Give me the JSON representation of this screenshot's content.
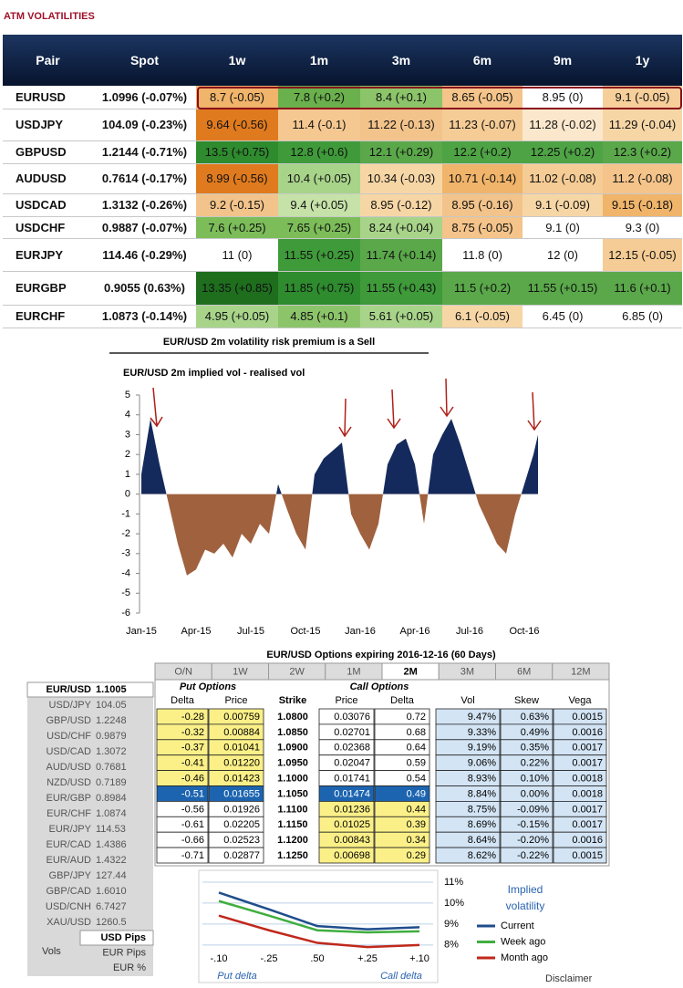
{
  "header": {
    "title": "ATM VOLATILITIES"
  },
  "vol_table": {
    "columns": [
      "Pair",
      "Spot",
      "1w",
      "1m",
      "3m",
      "6m",
      "9m",
      "1y"
    ],
    "rows": [
      [
        "EURUSD",
        "1.0996 (-0.07%)",
        "8.7 (-0.05)",
        "7.8 (+0.2)",
        "8.4 (+0.1)",
        "8.65 (-0.05)",
        "8.95 (0)",
        "9.1 (-0.05)"
      ],
      [
        "USDJPY",
        "104.09 (-0.23%)",
        "9.64 (-0.56)",
        "11.4 (-0.1)",
        "11.22 (-0.13)",
        "11.23 (-0.07)",
        "11.28 (-0.02)",
        "11.29 (-0.04)"
      ],
      [
        "GBPUSD",
        "1.2144 (-0.71%)",
        "13.5 (+0.75)",
        "12.8 (+0.6)",
        "12.1 (+0.29)",
        "12.2 (+0.2)",
        "12.25 (+0.2)",
        "12.3 (+0.2)"
      ],
      [
        "AUDUSD",
        "0.7614 (-0.17%)",
        "8.99 (-0.56)",
        "10.4 (+0.05)",
        "10.34 (-0.03)",
        "10.71 (-0.14)",
        "11.02 (-0.08)",
        "11.2 (-0.08)"
      ],
      [
        "USDCAD",
        "1.3132 (-0.26%)",
        "9.2 (-0.15)",
        "9.4 (+0.05)",
        "8.95 (-0.12)",
        "8.95 (-0.16)",
        "9.1 (-0.09)",
        "9.15 (-0.18)"
      ],
      [
        "USDCHF",
        "0.9887 (-0.07%)",
        "7.6 (+0.25)",
        "7.65 (+0.25)",
        "8.24 (+0.04)",
        "8.75 (-0.05)",
        "9.1 (0)",
        "9.3 (0)"
      ],
      [
        "EURJPY",
        "114.46 (-0.29%)",
        "11 (0)",
        "11.55 (+0.25)",
        "11.74 (+0.14)",
        "11.8 (0)",
        "12 (0)",
        "12.15 (-0.05)"
      ],
      [
        "EURGBP",
        "0.9055 (0.63%)",
        "13.35 (+0.85)",
        "11.85 (+0.75)",
        "11.55 (+0.43)",
        "11.5 (+0.2)",
        "11.55 (+0.15)",
        "11.6 (+0.1)"
      ],
      [
        "EURCHF",
        "1.0873 (-0.14%)",
        "4.95 (+0.05)",
        "4.85 (+0.1)",
        "5.61 (+0.05)",
        "6.1 (-0.05)",
        "6.45 (0)",
        "6.85 (0)"
      ]
    ],
    "cell_colors": [
      [
        "#f0b46a",
        "#6ab04c",
        "#8cc46a",
        "#f4c48a",
        "#ffffff",
        "#f6cf9a"
      ],
      [
        "#e07a1e",
        "#f4c890",
        "#f2c38a",
        "#f5cc95",
        "#fbe8cc",
        "#f7d6a6"
      ],
      [
        "#2e8b2e",
        "#3f9a3a",
        "#5aa84a",
        "#4ea344",
        "#4ea344",
        "#5aa84a"
      ],
      [
        "#e07a1e",
        "#a8d48a",
        "#f7d6a6",
        "#f0b46a",
        "#f5cc95",
        "#f4c48a"
      ],
      [
        "#f2c38a",
        "#c6e2a8",
        "#f7d6a6",
        "#f2c38a",
        "#f7d6a6",
        "#f0b46a"
      ],
      [
        "#7cbd5a",
        "#7cbd5a",
        "#a8d48a",
        "#f4c48a",
        "#ffffff",
        "#ffffff"
      ],
      [
        "#ffffff",
        "#3f9a3a",
        "#5aa84a",
        "#ffffff",
        "#ffffff",
        "#f5cc95"
      ],
      [
        "#1e6e1e",
        "#2e8b2e",
        "#3f9a3a",
        "#5aa84a",
        "#5aa84a",
        "#5aa84a"
      ],
      [
        "#a8d48a",
        "#8cc46a",
        "#a8d48a",
        "#f7d6a6",
        "#ffffff",
        "#ffffff"
      ]
    ]
  },
  "chart_data": [
    {
      "type": "area",
      "title": "EUR/USD 2m volatility risk premium is a Sell",
      "subtitle": "EUR/USD 2m implied vol - realised vol",
      "x": [
        0,
        0.5,
        1,
        1.5,
        2,
        2.5,
        3,
        3.5,
        4,
        4.5,
        5,
        5.5,
        6,
        6.5,
        7,
        7.5,
        8,
        8.5,
        9,
        9.5,
        10,
        10.5,
        11,
        11.5,
        12,
        12.5,
        13,
        13.5,
        14,
        14.5,
        15,
        15.5,
        16,
        16.5,
        17,
        17.5,
        18,
        18.5,
        19,
        19.5,
        20,
        20.5,
        21,
        21.5,
        21.75
      ],
      "values": [
        1.0,
        3.8,
        1.5,
        -0.5,
        -2.5,
        -4.1,
        -3.8,
        -2.8,
        -3.0,
        -2.5,
        -3.2,
        -2.0,
        -2.5,
        -1.5,
        -2.0,
        0.5,
        -0.8,
        -2.0,
        -2.8,
        1.0,
        1.8,
        2.2,
        2.6,
        -1.0,
        -2.0,
        -2.8,
        -1.5,
        1.5,
        2.5,
        2.8,
        1.5,
        -1.5,
        2.0,
        3.0,
        3.8,
        2.5,
        1.0,
        -0.5,
        -1.5,
        -2.5,
        -3.0,
        -1.0,
        0.5,
        2.0,
        3.0
      ],
      "xlim": [
        -0.1,
        22.4
      ],
      "xticks": [
        {
          "value": 0,
          "label": "Jan-15"
        },
        {
          "value": 3,
          "label": "Apr-15"
        },
        {
          "value": 6,
          "label": "Jul-15"
        },
        {
          "value": 9,
          "label": "Oct-15"
        },
        {
          "value": 12,
          "label": "Jan-16"
        },
        {
          "value": 15,
          "label": "Apr-16"
        },
        {
          "value": 18,
          "label": "Jul-16"
        },
        {
          "value": 21,
          "label": "Oct-16"
        }
      ],
      "ylim": [
        -6,
        5
      ],
      "yticks": [
        -6,
        -5,
        -4,
        -3,
        -2,
        -1,
        0,
        1,
        2,
        3,
        4,
        5
      ],
      "colors": {
        "positive": "#152a5c",
        "negative": "#a0613e"
      }
    },
    {
      "type": "line",
      "legend_title": "Implied volatility",
      "put_label": "Put delta",
      "call_label": "Call delta",
      "categories": [
        "-.10",
        "-.25",
        ".50",
        "+.25",
        "+.10"
      ],
      "series": [
        {
          "name": "Current",
          "color": "#1f4e8c",
          "values": [
            10.5,
            9.7,
            8.9,
            8.75,
            8.85
          ]
        },
        {
          "name": "Week ago",
          "color": "#3fae3f",
          "values": [
            10.1,
            9.4,
            8.7,
            8.6,
            8.65
          ]
        },
        {
          "name": "Month ago",
          "color": "#c0281c",
          "values": [
            9.4,
            8.7,
            8.1,
            7.9,
            8.0
          ]
        }
      ],
      "ylim": [
        7.6,
        11.4
      ],
      "yticks": [
        {
          "value": 8,
          "label": "8%"
        },
        {
          "value": 9,
          "label": "9%"
        },
        {
          "value": 10,
          "label": "10%"
        },
        {
          "value": 11,
          "label": "11%"
        }
      ],
      "grid": true
    }
  ],
  "options": {
    "title": "EUR/USD Options expiring 2016-12-16 (60 Days)",
    "tabs": [
      "O/N",
      "1W",
      "2W",
      "1M",
      "2M",
      "3M",
      "6M",
      "12M"
    ],
    "active_tab": "2M",
    "put_header": "Put Options",
    "call_header": "Call Options",
    "columns": [
      "Delta",
      "Price",
      "Strike",
      "Price",
      "Delta",
      "Vol",
      "Skew",
      "Vega"
    ],
    "rows": [
      [
        "-0.28",
        "0.00759",
        "1.0800",
        "0.03076",
        "0.72",
        "9.47%",
        "0.63%",
        "0.0015"
      ],
      [
        "-0.32",
        "0.00884",
        "1.0850",
        "0.02701",
        "0.68",
        "9.33%",
        "0.49%",
        "0.0016"
      ],
      [
        "-0.37",
        "0.01041",
        "1.0900",
        "0.02368",
        "0.64",
        "9.19%",
        "0.35%",
        "0.0017"
      ],
      [
        "-0.41",
        "0.01220",
        "1.0950",
        "0.02047",
        "0.59",
        "9.06%",
        "0.22%",
        "0.0017"
      ],
      [
        "-0.46",
        "0.01423",
        "1.1000",
        "0.01741",
        "0.54",
        "8.93%",
        "0.10%",
        "0.0018"
      ],
      [
        "-0.51",
        "0.01655",
        "1.1050",
        "0.01474",
        "0.49",
        "8.84%",
        "0.00%",
        "0.0018"
      ],
      [
        "-0.56",
        "0.01926",
        "1.1100",
        "0.01236",
        "0.44",
        "8.75%",
        "-0.09%",
        "0.0017"
      ],
      [
        "-0.61",
        "0.02205",
        "1.1150",
        "0.01025",
        "0.39",
        "8.69%",
        "-0.15%",
        "0.0017"
      ],
      [
        "-0.66",
        "0.02523",
        "1.1200",
        "0.00843",
        "0.34",
        "8.64%",
        "-0.20%",
        "0.0016"
      ],
      [
        "-0.71",
        "0.02877",
        "1.1250",
        "0.00698",
        "0.29",
        "8.62%",
        "-0.22%",
        "0.0015"
      ]
    ],
    "pairs": [
      [
        "EUR/USD",
        "1.1005"
      ],
      [
        "USD/JPY",
        "104.05"
      ],
      [
        "GBP/USD",
        "1.2248"
      ],
      [
        "USD/CHF",
        "0.9879"
      ],
      [
        "USD/CAD",
        "1.3072"
      ],
      [
        "AUD/USD",
        "0.7681"
      ],
      [
        "NZD/USD",
        "0.7189"
      ],
      [
        "EUR/GBP",
        "0.8984"
      ],
      [
        "EUR/CHF",
        "1.0874"
      ],
      [
        "EUR/JPY",
        "114.53"
      ],
      [
        "EUR/CAD",
        "1.4386"
      ],
      [
        "EUR/AUD",
        "1.4322"
      ],
      [
        "GBP/JPY",
        "127.44"
      ],
      [
        "GBP/CAD",
        "1.6010"
      ],
      [
        "USD/CNH",
        "6.7427"
      ],
      [
        "XAU/USD",
        "1260.5"
      ]
    ],
    "vols_label": "Vols",
    "units": [
      "USD Pips",
      "EUR Pips",
      "EUR %"
    ],
    "disclaimer": "Disclaimer"
  }
}
